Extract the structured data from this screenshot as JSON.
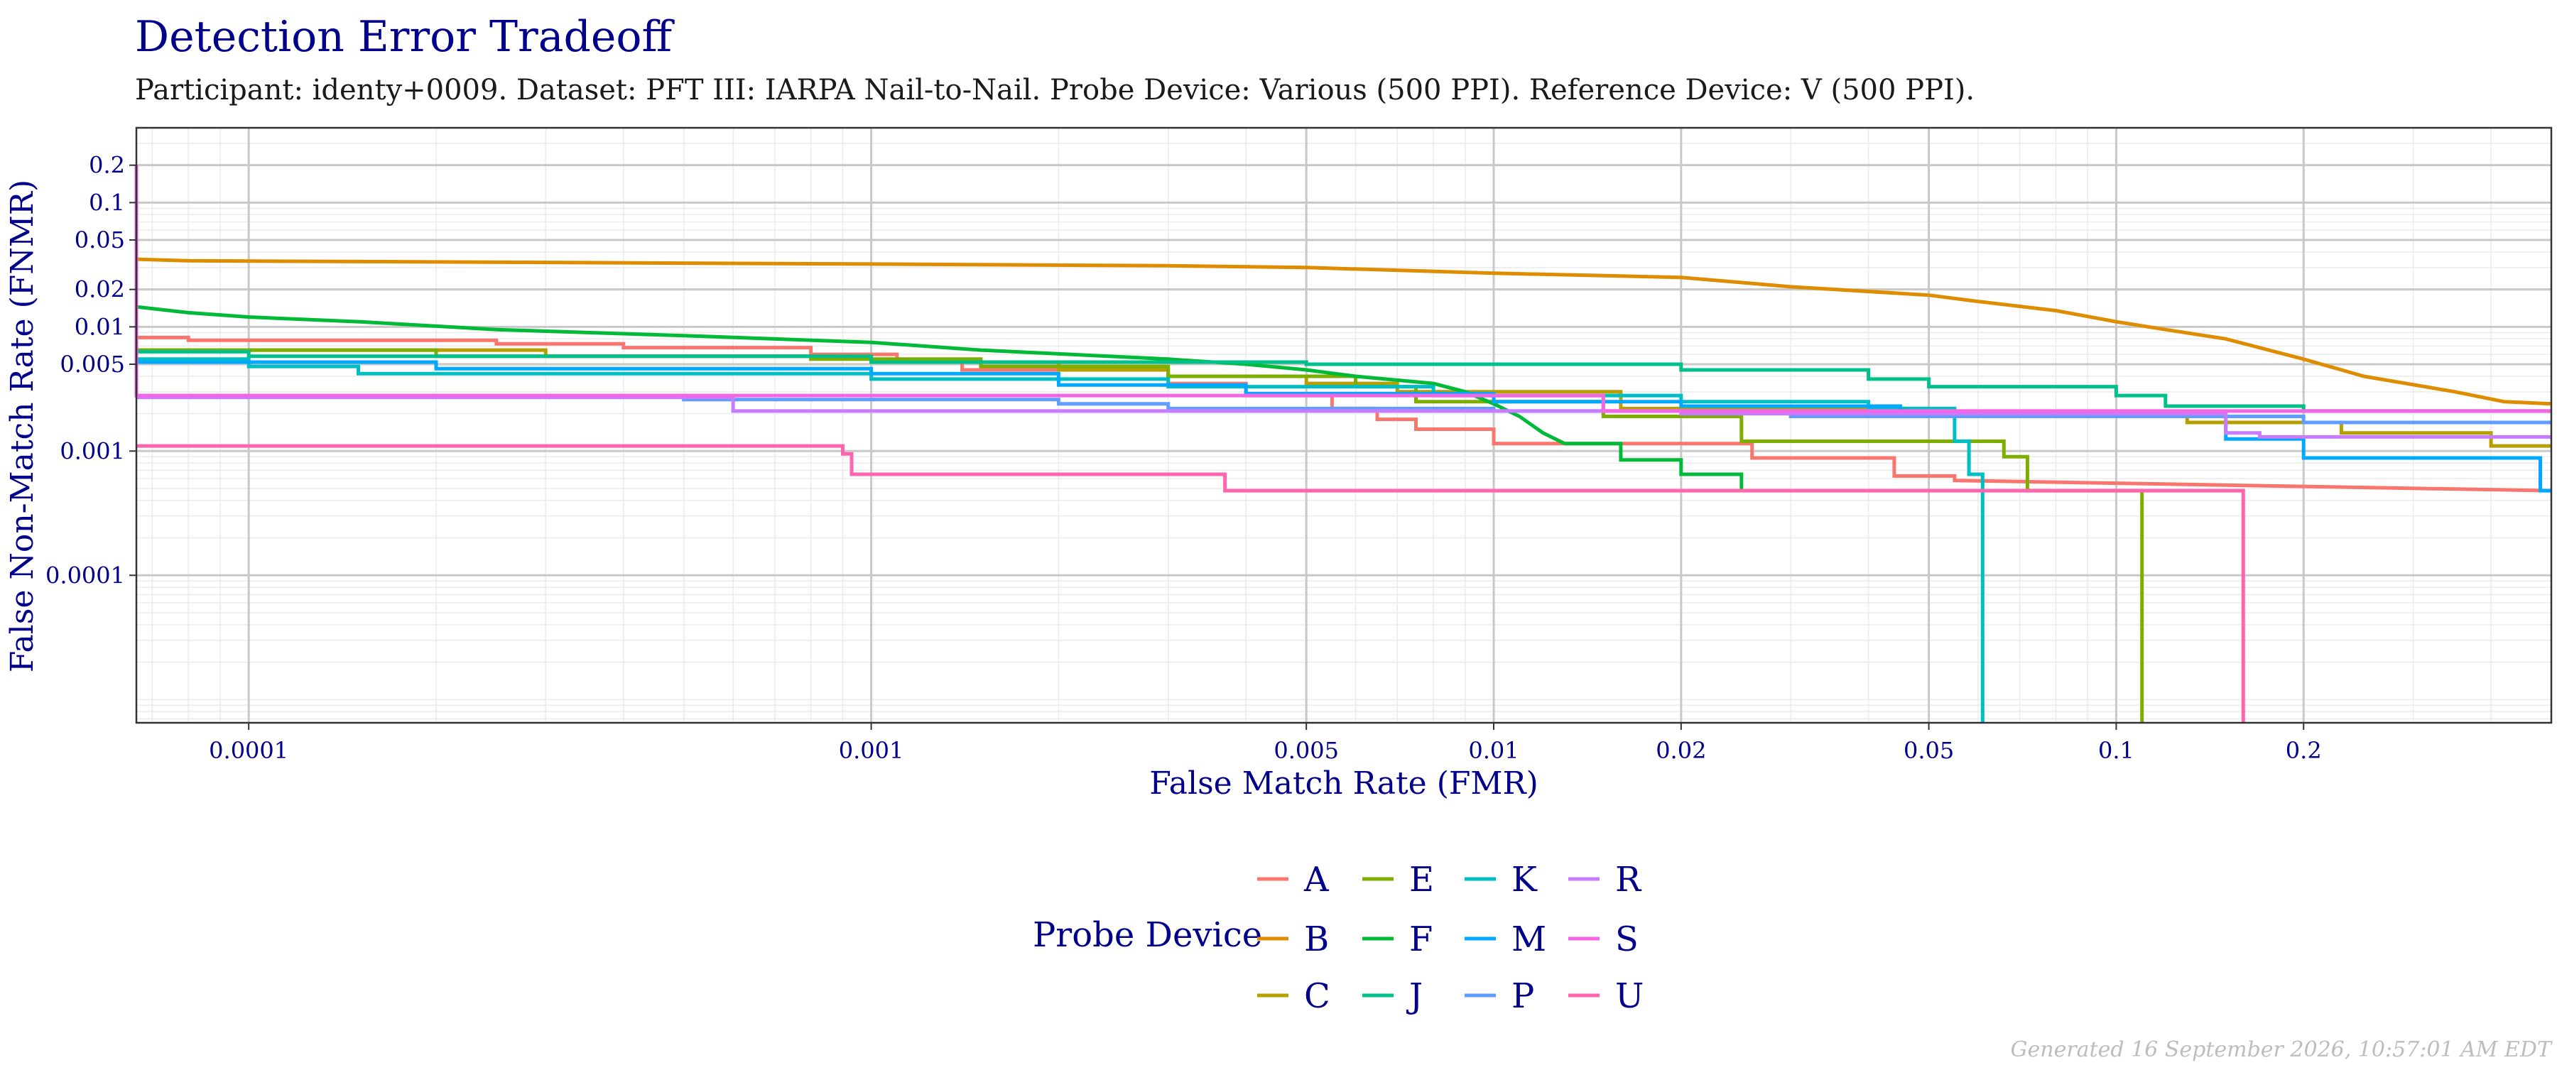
{
  "chart_data": {
    "type": "line",
    "title": "Detection Error Tradeoff",
    "subtitle": "Participant: identy+0009. Dataset: PFT III: IARPA Nail-to-Nail. Probe Device: Various (500 PPI). Reference Device: V (500 PPI).",
    "xlabel": "False Match Rate (FMR)",
    "ylabel": "False Non-Match Rate (FNMR)",
    "x_scale": "log",
    "y_scale": "log",
    "xlim": [
      6.6e-05,
      0.5
    ],
    "ylim": [
      6.5e-06,
      0.4
    ],
    "x_ticks": [
      0.0001,
      0.001,
      0.005,
      0.01,
      0.02,
      0.05,
      0.1,
      0.2
    ],
    "x_tick_labels": [
      "0.0001",
      "0.001",
      "0.005",
      "0.01",
      "0.02",
      "0.05",
      "0.1",
      "0.2"
    ],
    "y_ticks": [
      0.0001,
      0.001,
      0.005,
      0.01,
      0.02,
      0.05,
      0.1,
      0.2
    ],
    "y_tick_labels": [
      "0.0001",
      "0.001",
      "0.005",
      "0.01",
      "0.02",
      "0.05",
      "0.1",
      "0.2"
    ],
    "grid": true,
    "legend_title": "Probe Device",
    "legend_position": "bottom",
    "footer": "Generated 16 September 2026, 10:57:01 AM EDT",
    "series": [
      {
        "name": "A",
        "color": "#F8766D",
        "points": [
          [
            6.6e-05,
            0.0082
          ],
          [
            8e-05,
            0.0082
          ],
          [
            8e-05,
            0.0078
          ],
          [
            0.00025,
            0.0078
          ],
          [
            0.00025,
            0.0073
          ],
          [
            0.0004,
            0.0073
          ],
          [
            0.0004,
            0.0068
          ],
          [
            0.0008,
            0.0068
          ],
          [
            0.0008,
            0.006
          ],
          [
            0.0011,
            0.006
          ],
          [
            0.0011,
            0.0052
          ],
          [
            0.0014,
            0.0052
          ],
          [
            0.0014,
            0.0045
          ],
          [
            0.003,
            0.0045
          ],
          [
            0.003,
            0.0035
          ],
          [
            0.004,
            0.0035
          ],
          [
            0.004,
            0.0028
          ],
          [
            0.0055,
            0.0028
          ],
          [
            0.0055,
            0.0022
          ],
          [
            0.0065,
            0.0022
          ],
          [
            0.0065,
            0.0018
          ],
          [
            0.0075,
            0.0018
          ],
          [
            0.0075,
            0.0015
          ],
          [
            0.01,
            0.0015
          ],
          [
            0.01,
            0.00115
          ],
          [
            0.026,
            0.00115
          ],
          [
            0.026,
            0.00088
          ],
          [
            0.044,
            0.00088
          ],
          [
            0.044,
            0.00063
          ],
          [
            0.055,
            0.00063
          ],
          [
            0.055,
            0.00058
          ],
          [
            0.5,
            0.00048
          ]
        ]
      },
      {
        "name": "B",
        "color": "#DE8C00",
        "points": [
          [
            6.6e-05,
            0.035
          ],
          [
            8e-05,
            0.034
          ],
          [
            0.0003,
            0.033
          ],
          [
            0.001,
            0.032
          ],
          [
            0.003,
            0.031
          ],
          [
            0.005,
            0.03
          ],
          [
            0.01,
            0.027
          ],
          [
            0.02,
            0.025
          ],
          [
            0.03,
            0.021
          ],
          [
            0.05,
            0.018
          ],
          [
            0.06,
            0.016
          ],
          [
            0.08,
            0.0135
          ],
          [
            0.1,
            0.011
          ],
          [
            0.12,
            0.0095
          ],
          [
            0.15,
            0.008
          ],
          [
            0.2,
            0.0055
          ],
          [
            0.25,
            0.004
          ],
          [
            0.35,
            0.003
          ],
          [
            0.42,
            0.0025
          ],
          [
            0.5,
            0.0024
          ]
        ]
      },
      {
        "name": "C",
        "color": "#B79F00",
        "points": [
          [
            6.6e-05,
            0.0065
          ],
          [
            0.0003,
            0.0065
          ],
          [
            0.0003,
            0.0058
          ],
          [
            0.001,
            0.0058
          ],
          [
            0.001,
            0.0052
          ],
          [
            0.002,
            0.0052
          ],
          [
            0.002,
            0.0045
          ],
          [
            0.003,
            0.0045
          ],
          [
            0.003,
            0.004
          ],
          [
            0.005,
            0.004
          ],
          [
            0.005,
            0.0035
          ],
          [
            0.007,
            0.0035
          ],
          [
            0.007,
            0.003
          ],
          [
            0.016,
            0.003
          ],
          [
            0.016,
            0.0022
          ],
          [
            0.05,
            0.0022
          ],
          [
            0.05,
            0.0019
          ],
          [
            0.13,
            0.0019
          ],
          [
            0.13,
            0.0017
          ],
          [
            0.23,
            0.0017
          ],
          [
            0.23,
            0.0014
          ],
          [
            0.4,
            0.0014
          ],
          [
            0.4,
            0.0011
          ],
          [
            0.5,
            0.0011
          ]
        ]
      },
      {
        "name": "E",
        "color": "#7CAE00",
        "points": [
          [
            6.6e-05,
            0.0065
          ],
          [
            0.0002,
            0.0065
          ],
          [
            0.0002,
            0.0058
          ],
          [
            0.0008,
            0.0058
          ],
          [
            0.0008,
            0.0055
          ],
          [
            0.0015,
            0.0055
          ],
          [
            0.0015,
            0.0048
          ],
          [
            0.003,
            0.0048
          ],
          [
            0.003,
            0.004
          ],
          [
            0.006,
            0.004
          ],
          [
            0.006,
            0.0033
          ],
          [
            0.0075,
            0.0033
          ],
          [
            0.0075,
            0.0025
          ],
          [
            0.015,
            0.0025
          ],
          [
            0.015,
            0.0019
          ],
          [
            0.025,
            0.0019
          ],
          [
            0.025,
            0.0012
          ],
          [
            0.066,
            0.0012
          ],
          [
            0.066,
            0.0009
          ],
          [
            0.072,
            0.0009
          ],
          [
            0.072,
            0.00048
          ],
          [
            0.11,
            0.00048
          ],
          [
            0.11,
            6.5e-06
          ]
        ]
      },
      {
        "name": "F",
        "color": "#00BA38",
        "points": [
          [
            6.6e-05,
            0.0145
          ],
          [
            8e-05,
            0.013
          ],
          [
            0.0001,
            0.012
          ],
          [
            0.00015,
            0.011
          ],
          [
            0.00025,
            0.0095
          ],
          [
            0.0005,
            0.0085
          ],
          [
            0.001,
            0.0075
          ],
          [
            0.0015,
            0.0065
          ],
          [
            0.003,
            0.0055
          ],
          [
            0.004,
            0.005
          ],
          [
            0.005,
            0.0045
          ],
          [
            0.006,
            0.004
          ],
          [
            0.008,
            0.0035
          ],
          [
            0.009,
            0.003
          ],
          [
            0.01,
            0.0024
          ],
          [
            0.011,
            0.0019
          ],
          [
            0.012,
            0.0014
          ],
          [
            0.013,
            0.00115
          ],
          [
            0.016,
            0.00115
          ],
          [
            0.016,
            0.00085
          ],
          [
            0.02,
            0.00085
          ],
          [
            0.02,
            0.00065
          ],
          [
            0.025,
            0.00065
          ],
          [
            0.025,
            0.00048
          ]
        ]
      },
      {
        "name": "J",
        "color": "#00C08B",
        "points": [
          [
            6.6e-05,
            0.0063
          ],
          [
            0.0001,
            0.0063
          ],
          [
            0.0001,
            0.0058
          ],
          [
            0.001,
            0.0058
          ],
          [
            0.001,
            0.0052
          ],
          [
            0.005,
            0.0052
          ],
          [
            0.005,
            0.005
          ],
          [
            0.02,
            0.005
          ],
          [
            0.02,
            0.0045
          ],
          [
            0.04,
            0.0045
          ],
          [
            0.04,
            0.0038
          ],
          [
            0.05,
            0.0038
          ],
          [
            0.05,
            0.0033
          ],
          [
            0.1,
            0.0033
          ],
          [
            0.1,
            0.0028
          ],
          [
            0.12,
            0.0028
          ],
          [
            0.12,
            0.0023
          ],
          [
            0.2,
            0.0023
          ],
          [
            0.2,
            0.0021
          ],
          [
            0.5,
            0.0021
          ]
        ]
      },
      {
        "name": "K",
        "color": "#00BFC4",
        "points": [
          [
            6.6e-05,
            0.0055
          ],
          [
            0.0001,
            0.0055
          ],
          [
            0.0001,
            0.0048
          ],
          [
            0.00015,
            0.0048
          ],
          [
            0.00015,
            0.0042
          ],
          [
            0.001,
            0.0042
          ],
          [
            0.001,
            0.0038
          ],
          [
            0.003,
            0.0038
          ],
          [
            0.003,
            0.0033
          ],
          [
            0.008,
            0.0033
          ],
          [
            0.008,
            0.0028
          ],
          [
            0.02,
            0.0028
          ],
          [
            0.02,
            0.0025
          ],
          [
            0.04,
            0.0025
          ],
          [
            0.04,
            0.0022
          ],
          [
            0.055,
            0.0022
          ],
          [
            0.055,
            0.0012
          ],
          [
            0.058,
            0.0012
          ],
          [
            0.058,
            0.00065
          ],
          [
            0.061,
            0.00065
          ],
          [
            0.061,
            6.5e-06
          ]
        ]
      },
      {
        "name": "M",
        "color": "#00A9FF",
        "points": [
          [
            6.6e-05,
            0.0052
          ],
          [
            0.0002,
            0.0052
          ],
          [
            0.0002,
            0.0046
          ],
          [
            0.001,
            0.0046
          ],
          [
            0.001,
            0.0042
          ],
          [
            0.002,
            0.0042
          ],
          [
            0.002,
            0.0034
          ],
          [
            0.004,
            0.0034
          ],
          [
            0.004,
            0.0029
          ],
          [
            0.01,
            0.0029
          ],
          [
            0.01,
            0.0025
          ],
          [
            0.02,
            0.0025
          ],
          [
            0.02,
            0.0023
          ],
          [
            0.045,
            0.0023
          ],
          [
            0.045,
            0.0019
          ],
          [
            0.15,
            0.0019
          ],
          [
            0.15,
            0.00125
          ],
          [
            0.2,
            0.00125
          ],
          [
            0.2,
            0.00088
          ],
          [
            0.48,
            0.00088
          ],
          [
            0.48,
            0.00048
          ],
          [
            0.5,
            0.00048
          ]
        ]
      },
      {
        "name": "P",
        "color": "#619CFF",
        "points": [
          [
            6.6e-05,
            0.0028
          ],
          [
            0.0005,
            0.0028
          ],
          [
            0.0005,
            0.0026
          ],
          [
            0.002,
            0.0026
          ],
          [
            0.002,
            0.0024
          ],
          [
            0.003,
            0.0024
          ],
          [
            0.003,
            0.0022
          ],
          [
            0.01,
            0.0022
          ],
          [
            0.01,
            0.0021
          ],
          [
            0.03,
            0.0021
          ],
          [
            0.03,
            0.0019
          ],
          [
            0.2,
            0.0019
          ],
          [
            0.2,
            0.0017
          ],
          [
            0.5,
            0.0017
          ]
        ]
      },
      {
        "name": "R",
        "color": "#C77CFF",
        "points": [
          [
            6.6e-05,
            0.0027
          ],
          [
            0.0006,
            0.0027
          ],
          [
            0.0006,
            0.0021
          ],
          [
            0.02,
            0.0021
          ],
          [
            0.02,
            0.002
          ],
          [
            0.15,
            0.002
          ],
          [
            0.15,
            0.0014
          ],
          [
            0.17,
            0.0014
          ],
          [
            0.17,
            0.0013
          ],
          [
            0.5,
            0.0013
          ]
        ]
      },
      {
        "name": "S",
        "color": "#F564E3",
        "points": [
          [
            6.6e-05,
            0.2
          ],
          [
            6.6e-05,
            0.0028
          ],
          [
            0.015,
            0.0028
          ],
          [
            0.015,
            0.0021
          ],
          [
            0.5,
            0.0021
          ]
        ]
      },
      {
        "name": "U",
        "color": "#FF64B0",
        "points": [
          [
            6.6e-05,
            0.0011
          ],
          [
            0.0009,
            0.0011
          ],
          [
            0.0009,
            0.00095
          ],
          [
            0.00093,
            0.00095
          ],
          [
            0.00093,
            0.00065
          ],
          [
            0.0037,
            0.00065
          ],
          [
            0.0037,
            0.00048
          ],
          [
            0.16,
            0.00048
          ],
          [
            0.16,
            6.5e-06
          ]
        ]
      }
    ]
  }
}
